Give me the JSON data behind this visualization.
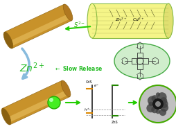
{
  "bg_color": "#ffffff",
  "nanorod_color_main": "#c8922a",
  "nanorod_color_light": "#e8c060",
  "nanorod_color_dark": "#8a6010",
  "nanorod_color_end": "#b07820",
  "green_ball_color": "#44ee22",
  "green_ball_edge": "#22aa00",
  "arrow_green_color": "#22cc00",
  "arrow_blue_color": "#88bbdd",
  "zn2plus_color": "#22bb22",
  "slow_release_color": "#22bb22",
  "s2minus_color": "#22aa00",
  "box_yellow_face": "#f5f588",
  "box_yellow_edge": "#88bb44",
  "box_yellow_end": "#e0e070",
  "oval_green_face": "#d0eecc",
  "oval_green_edge": "#44aa44",
  "diagram_bar_color": "#222222",
  "diagram_orange": "#dd8800",
  "diagram_green": "#228800",
  "sem_face": "#888888",
  "sem_edge": "#44aa00"
}
